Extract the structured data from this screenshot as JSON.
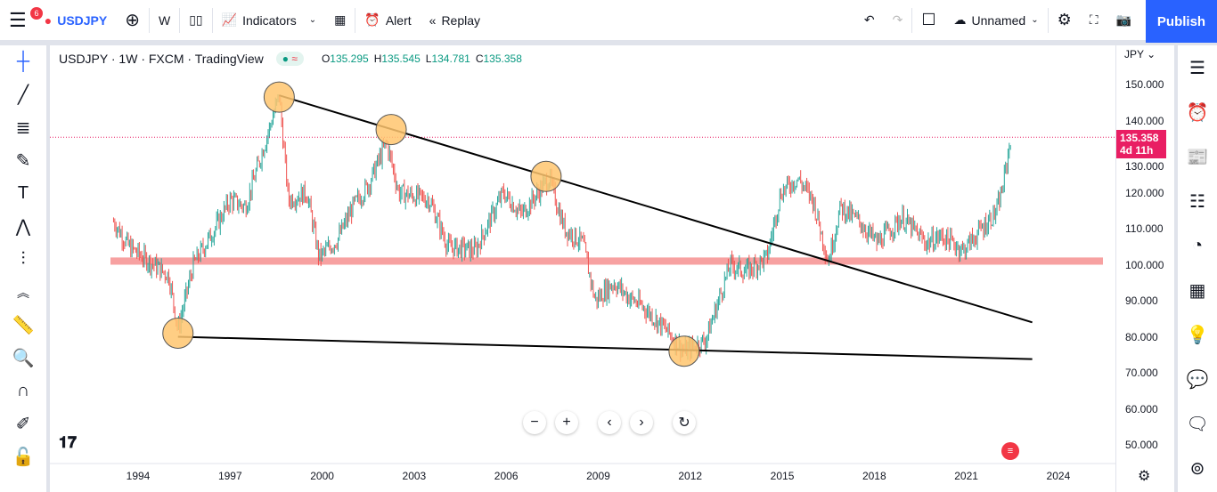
{
  "topbar": {
    "notifications": "6",
    "symbol": "USDJPY",
    "interval": "W",
    "indicators": "Indicators",
    "alert": "Alert",
    "replay": "Replay",
    "layout_name": "Unnamed",
    "publish": "Publish"
  },
  "legend": {
    "title": "USDJPY · 1W · FXCM · TradingView",
    "o_label": "O",
    "o": "135.295",
    "h_label": "H",
    "h": "135.545",
    "l_label": "L",
    "l": "134.781",
    "c_label": "C",
    "c": "135.358",
    "pill": "≈"
  },
  "price_axis": {
    "currency": "JPY",
    "last_price": "135.358",
    "countdown": "4d 11h"
  },
  "colors": {
    "up": "#26a69a",
    "down": "#ef5350",
    "band": "#f7a1a1",
    "marker": "#ffc66e",
    "label": "#e91e63"
  },
  "chart_data": {
    "type": "candlestick",
    "symbol": "USDJPY",
    "interval": "1W",
    "ylim": [
      45,
      155
    ],
    "xlim": [
      1991.7,
      2025.9
    ],
    "yticks": [
      "150.000",
      "140.000",
      "130.000",
      "120.000",
      "110.000",
      "100.000",
      "90.000",
      "80.000",
      "70.000",
      "60.000",
      "50.000"
    ],
    "xticks": [
      "1994",
      "1997",
      "2000",
      "2003",
      "2006",
      "2009",
      "2012",
      "2015",
      "2018",
      "2021",
      "2024"
    ],
    "path": [
      [
        1993.2,
        112
      ],
      [
        1993.7,
        105
      ],
      [
        1994.5,
        100
      ],
      [
        1995.0,
        97
      ],
      [
        1995.3,
        82
      ],
      [
        1995.8,
        100
      ],
      [
        1996.5,
        110
      ],
      [
        1997.0,
        118
      ],
      [
        1997.5,
        116
      ],
      [
        1998.0,
        130
      ],
      [
        1998.6,
        147
      ],
      [
        1998.9,
        118
      ],
      [
        1999.5,
        120
      ],
      [
        1999.9,
        102
      ],
      [
        2000.5,
        107
      ],
      [
        2001.0,
        116
      ],
      [
        2001.5,
        122
      ],
      [
        2002.1,
        134
      ],
      [
        2002.5,
        120
      ],
      [
        2003.0,
        119
      ],
      [
        2003.5,
        118
      ],
      [
        2004.1,
        105
      ],
      [
        2005.0,
        104
      ],
      [
        2005.9,
        120
      ],
      [
        2006.5,
        114
      ],
      [
        2007.4,
        124
      ],
      [
        2007.9,
        110
      ],
      [
        2008.5,
        106
      ],
      [
        2008.9,
        90
      ],
      [
        2009.5,
        95
      ],
      [
        2010.0,
        91
      ],
      [
        2010.5,
        88
      ],
      [
        2011.2,
        82
      ],
      [
        2011.8,
        76
      ],
      [
        2012.5,
        79
      ],
      [
        2013.3,
        100
      ],
      [
        2013.8,
        98
      ],
      [
        2014.5,
        102
      ],
      [
        2014.95,
        120
      ],
      [
        2015.5,
        124
      ],
      [
        2016.0,
        118
      ],
      [
        2016.5,
        101
      ],
      [
        2016.9,
        116
      ],
      [
        2017.5,
        112
      ],
      [
        2018.1,
        106
      ],
      [
        2018.9,
        113
      ],
      [
        2019.7,
        106
      ],
      [
        2020.2,
        108
      ],
      [
        2020.9,
        104
      ],
      [
        2021.5,
        110
      ],
      [
        2022.0,
        115
      ],
      [
        2022.2,
        122
      ],
      [
        2022.45,
        135.4
      ]
    ],
    "support_band": [
      100,
      102
    ],
    "trendlines": [
      [
        [
          1998.6,
          147
        ],
        [
          2023.15,
          84
        ]
      ],
      [
        [
          1995.3,
          80
        ],
        [
          2023.15,
          73.8
        ]
      ]
    ],
    "markers": [
      [
        1998.6,
        146.5
      ],
      [
        1995.3,
        81
      ],
      [
        2002.25,
        137.5
      ],
      [
        2007.3,
        124.5
      ],
      [
        2011.8,
        76
      ]
    ],
    "last_price": 135.358
  }
}
